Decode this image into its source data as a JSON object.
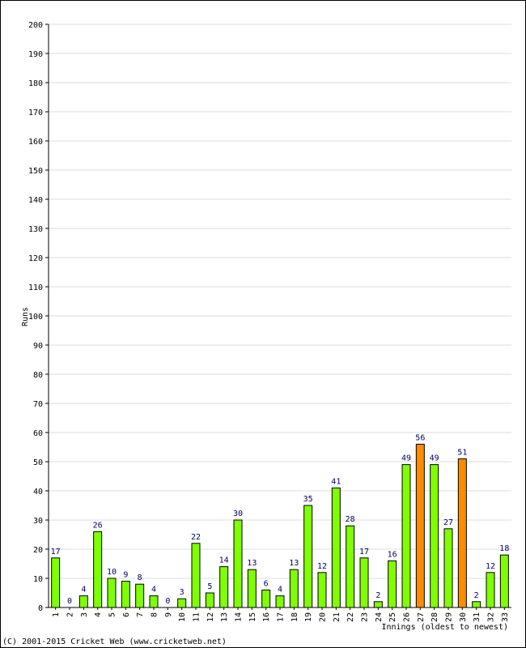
{
  "chart_data": {
    "type": "bar",
    "title": "",
    "xlabel": "Innings (oldest to newest)",
    "ylabel": "Runs",
    "ylim": [
      0,
      200
    ],
    "yticks": [
      0,
      10,
      20,
      30,
      40,
      50,
      60,
      70,
      80,
      90,
      100,
      110,
      120,
      130,
      140,
      150,
      160,
      170,
      180,
      190,
      200
    ],
    "grid": true,
    "categories": [
      "1",
      "2",
      "3",
      "4",
      "5",
      "6",
      "7",
      "8",
      "9",
      "10",
      "11",
      "12",
      "13",
      "14",
      "15",
      "16",
      "17",
      "18",
      "19",
      "20",
      "21",
      "22",
      "23",
      "24",
      "25",
      "26",
      "27",
      "28",
      "29",
      "30",
      "31",
      "32",
      "33"
    ],
    "values": [
      17,
      0,
      4,
      26,
      10,
      9,
      8,
      4,
      0,
      3,
      22,
      5,
      14,
      30,
      13,
      6,
      4,
      13,
      35,
      12,
      41,
      28,
      17,
      2,
      16,
      49,
      56,
      49,
      27,
      51,
      2,
      12,
      18
    ],
    "highlight_indices": [
      26,
      29
    ],
    "colors": {
      "normal": "#7FFF00",
      "highlight": "#FF8C00",
      "label": "#000066"
    }
  },
  "footer": {
    "copyright": "(C) 2001-2015 Cricket Web (www.cricketweb.net)"
  }
}
